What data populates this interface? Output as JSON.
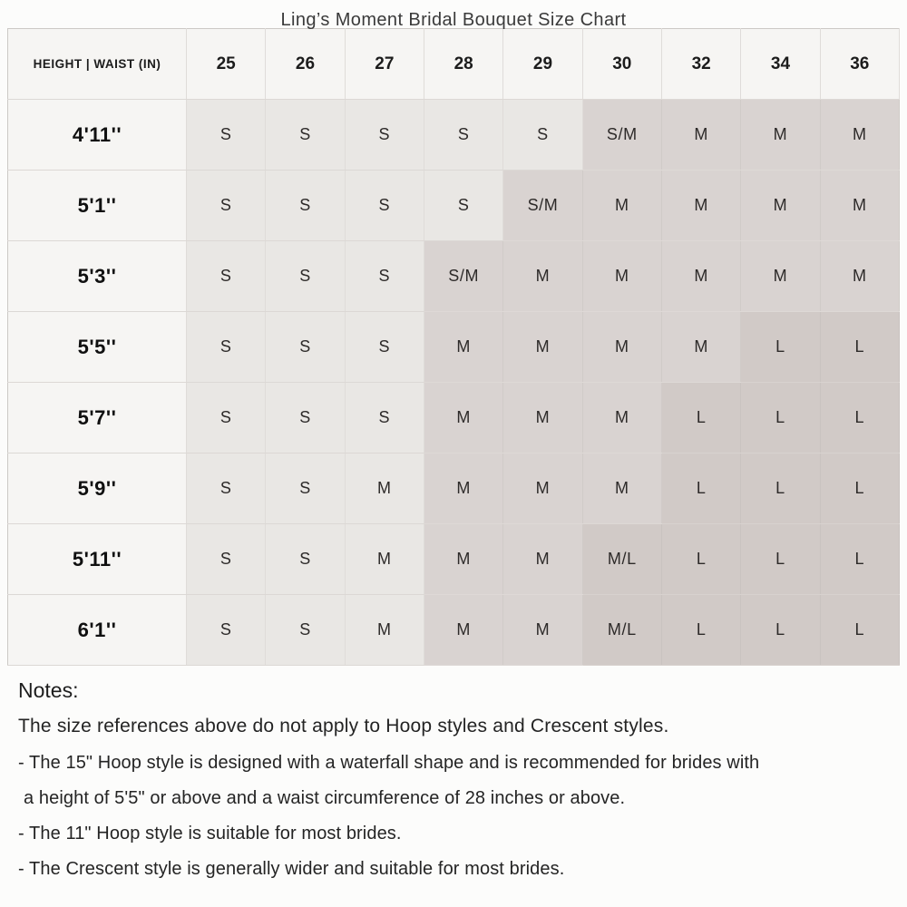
{
  "title": "Ling’s Moment Bridal Bouquet Size Chart",
  "colors": {
    "header_bg": "#f6f5f3",
    "cell_light": "#e9e7e4",
    "cell_medium": "#d9d3d1",
    "cell_dark": "#d1cac7",
    "page_bg": "#fcfcfb"
  },
  "table": {
    "corner_label": "HEIGHT | WAIST (IN)",
    "waist_columns": [
      "25",
      "26",
      "27",
      "28",
      "29",
      "30",
      "32",
      "34",
      "36"
    ],
    "rows": [
      {
        "height": "4'11''",
        "cells": [
          {
            "size": "S",
            "shade": "light"
          },
          {
            "size": "S",
            "shade": "light"
          },
          {
            "size": "S",
            "shade": "light"
          },
          {
            "size": "S",
            "shade": "light"
          },
          {
            "size": "S",
            "shade": "light"
          },
          {
            "size": "S/M",
            "shade": "medium"
          },
          {
            "size": "M",
            "shade": "medium"
          },
          {
            "size": "M",
            "shade": "medium"
          },
          {
            "size": "M",
            "shade": "medium"
          }
        ]
      },
      {
        "height": "5'1''",
        "cells": [
          {
            "size": "S",
            "shade": "light"
          },
          {
            "size": "S",
            "shade": "light"
          },
          {
            "size": "S",
            "shade": "light"
          },
          {
            "size": "S",
            "shade": "light"
          },
          {
            "size": "S/M",
            "shade": "medium"
          },
          {
            "size": "M",
            "shade": "medium"
          },
          {
            "size": "M",
            "shade": "medium"
          },
          {
            "size": "M",
            "shade": "medium"
          },
          {
            "size": "M",
            "shade": "medium"
          }
        ]
      },
      {
        "height": "5'3''",
        "cells": [
          {
            "size": "S",
            "shade": "light"
          },
          {
            "size": "S",
            "shade": "light"
          },
          {
            "size": "S",
            "shade": "light"
          },
          {
            "size": "S/M",
            "shade": "medium"
          },
          {
            "size": "M",
            "shade": "medium"
          },
          {
            "size": "M",
            "shade": "medium"
          },
          {
            "size": "M",
            "shade": "medium"
          },
          {
            "size": "M",
            "shade": "medium"
          },
          {
            "size": "M",
            "shade": "medium"
          }
        ]
      },
      {
        "height": "5'5''",
        "cells": [
          {
            "size": "S",
            "shade": "light"
          },
          {
            "size": "S",
            "shade": "light"
          },
          {
            "size": "S",
            "shade": "light"
          },
          {
            "size": "M",
            "shade": "medium"
          },
          {
            "size": "M",
            "shade": "medium"
          },
          {
            "size": "M",
            "shade": "medium"
          },
          {
            "size": "M",
            "shade": "medium"
          },
          {
            "size": "L",
            "shade": "dark"
          },
          {
            "size": "L",
            "shade": "dark"
          }
        ]
      },
      {
        "height": "5'7''",
        "cells": [
          {
            "size": "S",
            "shade": "light"
          },
          {
            "size": "S",
            "shade": "light"
          },
          {
            "size": "S",
            "shade": "light"
          },
          {
            "size": "M",
            "shade": "medium"
          },
          {
            "size": "M",
            "shade": "medium"
          },
          {
            "size": "M",
            "shade": "medium"
          },
          {
            "size": "L",
            "shade": "dark"
          },
          {
            "size": "L",
            "shade": "dark"
          },
          {
            "size": "L",
            "shade": "dark"
          }
        ]
      },
      {
        "height": "5'9''",
        "cells": [
          {
            "size": "S",
            "shade": "light"
          },
          {
            "size": "S",
            "shade": "light"
          },
          {
            "size": "M",
            "shade": "light"
          },
          {
            "size": "M",
            "shade": "medium"
          },
          {
            "size": "M",
            "shade": "medium"
          },
          {
            "size": "M",
            "shade": "medium"
          },
          {
            "size": "L",
            "shade": "dark"
          },
          {
            "size": "L",
            "shade": "dark"
          },
          {
            "size": "L",
            "shade": "dark"
          }
        ]
      },
      {
        "height": "5'11''",
        "cells": [
          {
            "size": "S",
            "shade": "light"
          },
          {
            "size": "S",
            "shade": "light"
          },
          {
            "size": "M",
            "shade": "light"
          },
          {
            "size": "M",
            "shade": "medium"
          },
          {
            "size": "M",
            "shade": "medium"
          },
          {
            "size": "M/L",
            "shade": "dark"
          },
          {
            "size": "L",
            "shade": "dark"
          },
          {
            "size": "L",
            "shade": "dark"
          },
          {
            "size": "L",
            "shade": "dark"
          }
        ]
      },
      {
        "height": "6'1''",
        "cells": [
          {
            "size": "S",
            "shade": "light"
          },
          {
            "size": "S",
            "shade": "light"
          },
          {
            "size": "M",
            "shade": "light"
          },
          {
            "size": "M",
            "shade": "medium"
          },
          {
            "size": "M",
            "shade": "medium"
          },
          {
            "size": "M/L",
            "shade": "dark"
          },
          {
            "size": "L",
            "shade": "dark"
          },
          {
            "size": "L",
            "shade": "dark"
          },
          {
            "size": "L",
            "shade": "dark"
          }
        ]
      }
    ]
  },
  "notes": {
    "heading": "Notes:",
    "line1": "The size references above do not apply to Hoop styles and Crescent styles.",
    "lines": [
      {
        "text": "- The 15\" Hoop style is designed with a waterfall shape and is recommended for brides with",
        "indent": false
      },
      {
        "text": "a height of 5'5\" or above and a waist circumference of 28 inches or above.",
        "indent": true
      },
      {
        "text": "- The 11\" Hoop style is suitable for most brides.",
        "indent": false
      },
      {
        "text": "- The Crescent style is generally wider and suitable for most brides.",
        "indent": false
      }
    ]
  }
}
